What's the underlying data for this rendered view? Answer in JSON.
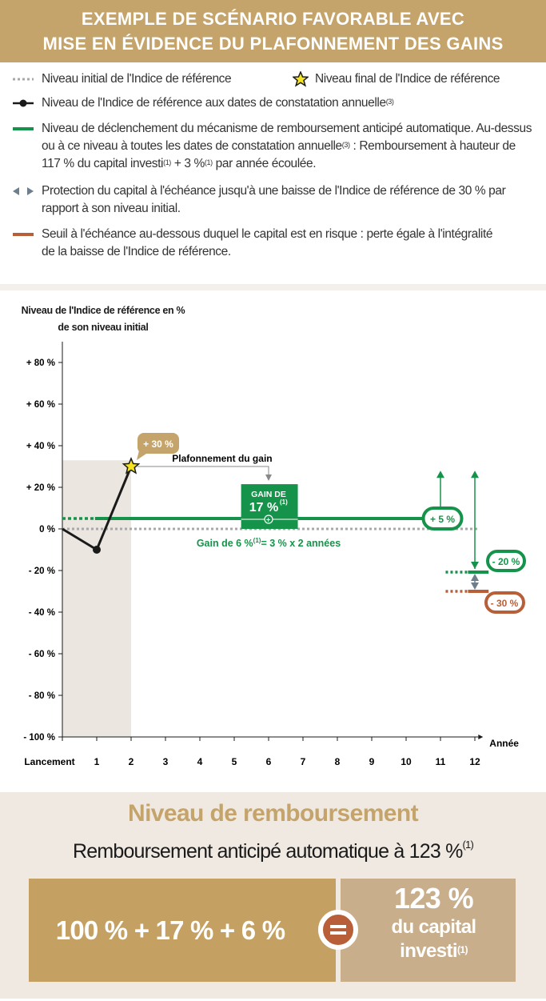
{
  "header": {
    "title_line1": "EXEMPLE DE SCÉNARIO FAVORABLE AVEC",
    "title_line2": "MISE EN ÉVIDENCE DU PLAFONNEMENT DES GAINS"
  },
  "legend": {
    "initial": "Niveau initial de l'Indice de référence",
    "final": "Niveau final de l'Indice de référence",
    "annual": "Niveau de l'Indice de référence aux dates de constatation annuelle",
    "annual_sup": "(3)",
    "trigger_l1": "Niveau de déclenchement du mécanisme de remboursement anticipé automatique. Au-dessus",
    "trigger_l2a": "ou à ce niveau à toutes les dates de constatation annuelle",
    "trigger_l2_sup": "(3)",
    "trigger_l2b": " : Remboursement à hauteur de",
    "trigger_l3a": "117 % du capital investi",
    "trigger_l3_sup1": "(1)",
    "trigger_l3b": " + 3 %",
    "trigger_l3_sup2": "(1)",
    "trigger_l3c": " par année écoulée.",
    "protection_l1": "Protection du capital à l'échéance jusqu'à une baisse de l'Indice de référence de 30 % par",
    "protection_l2": "rapport à son niveau initial.",
    "risk_l1": "Seuil à l'échéance au-dessous duquel le capital est en risque : perte égale à l'intégralité",
    "risk_l2": "de la baisse de l'Indice de référence."
  },
  "colors": {
    "gold": "#c4a46b",
    "green": "#16934a",
    "orange": "#b85f3a",
    "grey": "#a8a8a8",
    "slate": "#6d7f8c",
    "black": "#1a1a1a"
  },
  "chart_data": {
    "type": "line",
    "ylabel_l1": "Niveau de l'Indice de référence en %",
    "ylabel_l2": "de son niveau initial",
    "xlabel": "Année",
    "ylim": [
      -100,
      90
    ],
    "yticks": [
      80,
      60,
      40,
      20,
      0,
      -20,
      -40,
      -60,
      -80,
      -100
    ],
    "ytick_labels": [
      "+ 80 %",
      "+ 60 %",
      "+ 40 %",
      "+ 20 %",
      "0 %",
      "- 20 %",
      "- 40 %",
      "- 60 %",
      "- 80 %",
      "- 100 %"
    ],
    "xticks": [
      0,
      1,
      2,
      3,
      4,
      5,
      6,
      7,
      8,
      9,
      10,
      11,
      12
    ],
    "xtick_labels": [
      "Lancement",
      "1",
      "2",
      "3",
      "4",
      "5",
      "6",
      "7",
      "8",
      "9",
      "10",
      "11",
      "12"
    ],
    "series": [
      {
        "name": "Indice de référence",
        "x": [
          0,
          1,
          2
        ],
        "values": [
          0,
          -10,
          30
        ]
      }
    ],
    "final_level": {
      "x": 2,
      "value": 30,
      "label": "+ 30 %"
    },
    "trigger_level": {
      "value": 5,
      "label": "+ 5 %"
    },
    "final_trigger_level": {
      "value": -20,
      "label": "- 20 %"
    },
    "risk_threshold": {
      "value": -30,
      "label": "- 30 %"
    },
    "annotations": {
      "cap": "Plafonnement du gain",
      "gain_box_l1": "GAIN DE",
      "gain_box_l2": "17 %",
      "gain_box_sup": "(1)",
      "gain_line_a": "Gain de 6 %",
      "gain_line_sup": "(1)",
      "gain_line_b": "= 3 % x 2 années"
    }
  },
  "bottom": {
    "title": "Niveau de remboursement",
    "subtitle": "Remboursement anticipé automatique à 123 %",
    "subtitle_sup": "(1)",
    "formula": "100 % + 17 % + 6 %",
    "result": "123 %",
    "result_l2": "du capital",
    "result_l3": "investi",
    "result_sup": "(1)"
  }
}
